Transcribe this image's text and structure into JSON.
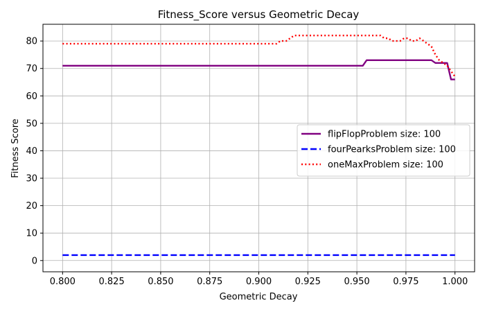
{
  "chart_data": {
    "type": "line",
    "title": "Fitness_Score versus Geometric Decay",
    "xlabel": "Geometric Decay",
    "ylabel": "Fitness Score",
    "xlim": [
      0.79,
      1.01
    ],
    "ylim": [
      -4.1,
      86.1
    ],
    "x_ticks": [
      "0.800",
      "0.825",
      "0.850",
      "0.875",
      "0.900",
      "0.925",
      "0.950",
      "0.975",
      "1.000"
    ],
    "x_tick_values": [
      0.8,
      0.825,
      0.85,
      0.875,
      0.9,
      0.925,
      0.95,
      0.975,
      1.0
    ],
    "y_ticks": [
      "0",
      "10",
      "20",
      "30",
      "40",
      "50",
      "60",
      "70",
      "80"
    ],
    "y_tick_values": [
      0,
      10,
      20,
      30,
      40,
      50,
      60,
      70,
      80
    ],
    "grid": true,
    "legend_position": "center-right",
    "series": [
      {
        "name": "flipFlopProblem size: 100",
        "color": "#800080",
        "style": "solid",
        "x": [
          0.8,
          0.952,
          0.953,
          0.955,
          0.957,
          0.986,
          0.988,
          0.99,
          0.992,
          0.996,
          0.998,
          1.0
        ],
        "y": [
          71,
          71,
          71,
          73,
          73,
          73,
          73,
          72,
          72,
          72,
          66,
          66
        ]
      },
      {
        "name": "fourPearksProblem size: 100",
        "color": "#0000ff",
        "style": "dashed",
        "x": [
          0.8,
          1.0
        ],
        "y": [
          2,
          2
        ]
      },
      {
        "name": "oneMaxProblem size: 100",
        "color": "#ff0000",
        "style": "dotted",
        "x": [
          0.8,
          0.909,
          0.911,
          0.914,
          0.916,
          0.918,
          0.96,
          0.962,
          0.964,
          0.966,
          0.968,
          0.97,
          0.972,
          0.974,
          0.976,
          0.978,
          0.98,
          0.982,
          0.984,
          0.986,
          0.988,
          0.99,
          0.992,
          0.994,
          0.996,
          0.998,
          1.0
        ],
        "y": [
          79,
          79,
          80,
          80,
          81,
          82,
          82,
          82,
          81,
          81,
          80,
          80,
          80,
          81,
          81,
          80,
          80,
          81,
          80,
          79,
          78,
          75,
          73,
          72,
          71,
          69,
          67
        ]
      }
    ]
  }
}
